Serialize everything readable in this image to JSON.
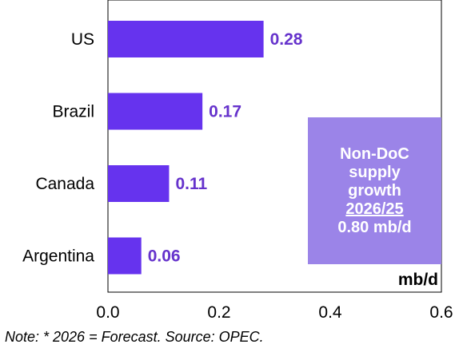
{
  "chart_data": {
    "type": "bar",
    "orientation": "horizontal",
    "categories": [
      "US",
      "Brazil",
      "Canada",
      "Argentina"
    ],
    "values": [
      0.28,
      0.17,
      0.11,
      0.06
    ],
    "value_labels": [
      "0.28",
      "0.17",
      "0.11",
      "0.06"
    ],
    "xlim": [
      0,
      0.6
    ],
    "xticks": [
      "0.0",
      "0.2",
      "0.4",
      "0.6"
    ],
    "tick_values": [
      0,
      0.2,
      0.4,
      0.6
    ],
    "unit_label": "mb/d",
    "grid": false,
    "legend": "none",
    "bar_color": "#6633ee",
    "label_color": "#6633cc"
  },
  "infobox": {
    "lines": [
      "Non-DoC",
      "supply",
      "growth"
    ],
    "underlined": "2026/25",
    "total": "0.80 mb/d",
    "background": "#9b84e8"
  },
  "footnote": "Note: * 2026 = Forecast. Source: OPEC."
}
